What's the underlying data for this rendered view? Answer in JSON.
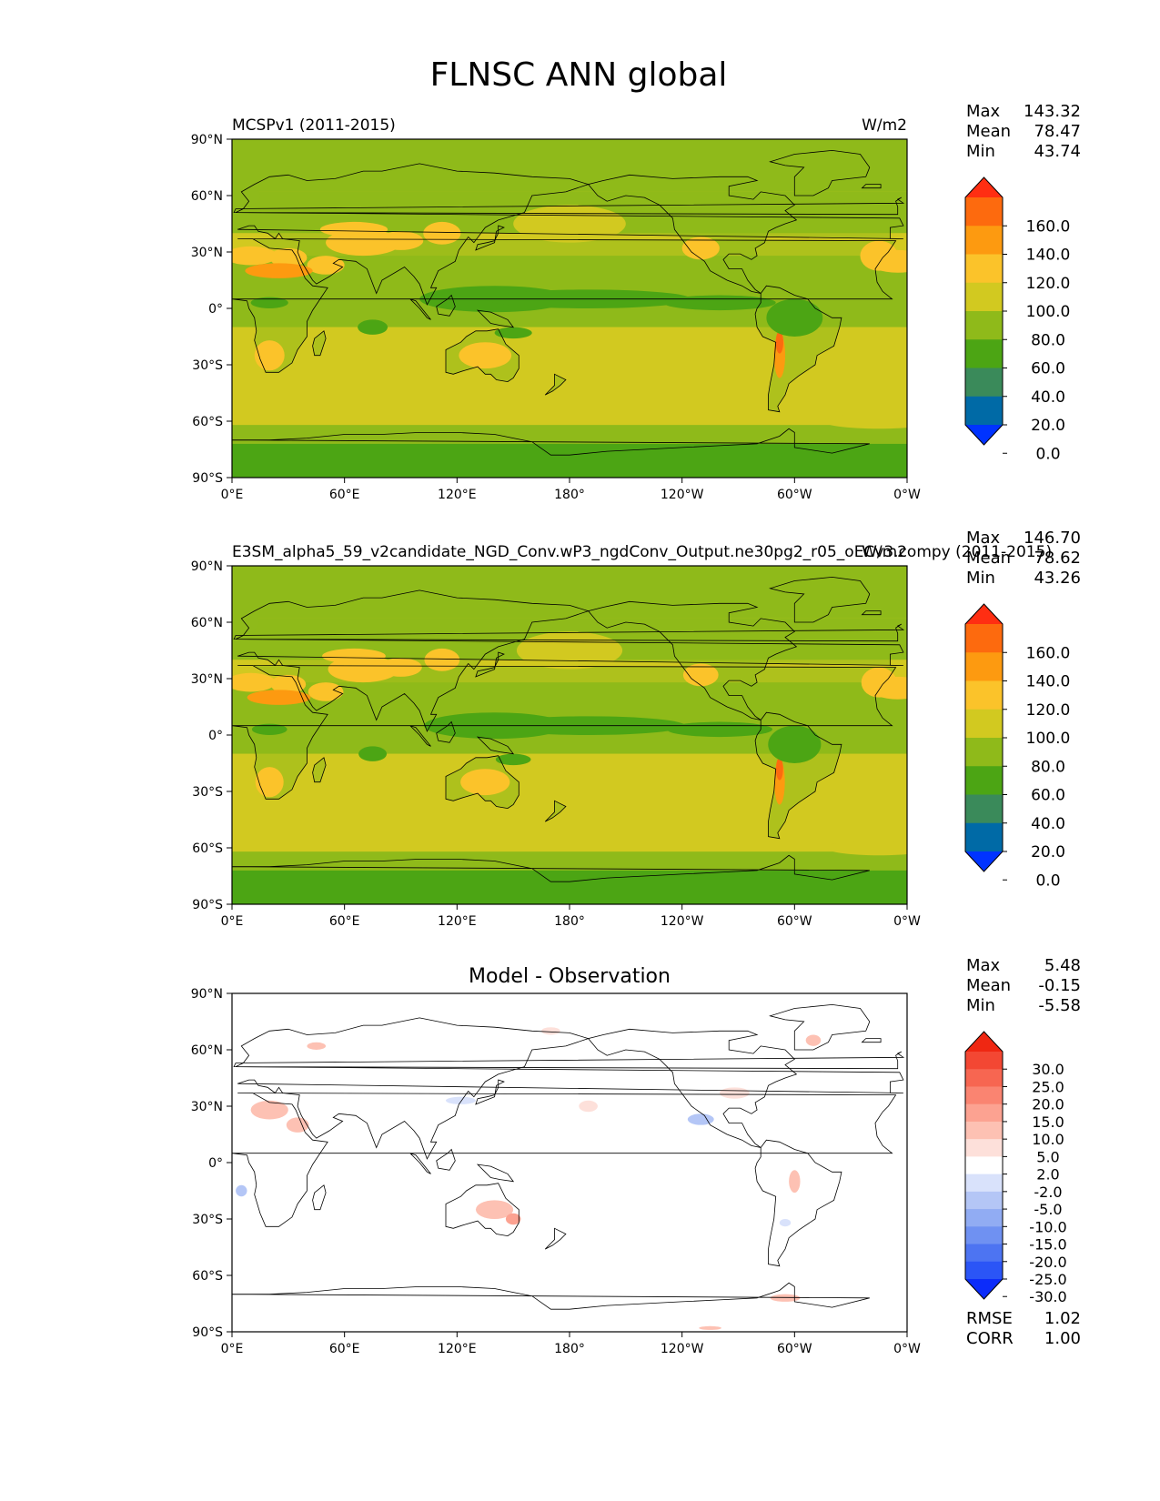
{
  "figure": {
    "title": "FLNSC ANN global"
  },
  "palettes": {
    "main": [
      "#0033ff",
      "#006aa6",
      "#3a8a5a",
      "#4ca514",
      "#8fba1a",
      "#d2c920",
      "#fbc32a",
      "#fd9a10",
      "#fd6a0e",
      "#ff2e12"
    ],
    "diff": [
      "#0c2cfa",
      "#2b55f6",
      "#4d74f2",
      "#6f91f2",
      "#91acf3",
      "#b4c6f6",
      "#d9e2fb",
      "#ffffff",
      "#fde0da",
      "#fdc1b3",
      "#fca291",
      "#fa8471",
      "#f76651",
      "#f34733",
      "#ef2712"
    ]
  },
  "lat_ticks": [
    "90°N",
    "60°N",
    "30°N",
    "0°",
    "30°S",
    "60°S",
    "90°S"
  ],
  "lon_ticks": [
    "0°E",
    "60°E",
    "120°E",
    "180°",
    "120°W",
    "60°W",
    "0°W"
  ],
  "chart_data": [
    {
      "type": "heatmap",
      "id": "test",
      "title_left": "MCSPv1 (2011-2015)",
      "title_right": "W/m2",
      "stats": [
        [
          "Max",
          "143.32"
        ],
        [
          "Mean",
          "78.47"
        ],
        [
          "Min",
          "43.74"
        ]
      ],
      "colorbar_levels": [
        "160.0",
        "140.0",
        "120.0",
        "100.0",
        "80.0",
        "60.0",
        "40.0",
        "20.0",
        "0.0"
      ],
      "xlim": [
        0,
        360
      ],
      "ylim": [
        -90,
        90
      ]
    },
    {
      "type": "heatmap",
      "id": "ref",
      "title_left": "E3SM_alpha5_59_v2candidate_NGD_Conv.wP3_ngdConv_Output.ne30pg2_r05_oECv3.compy (2011-2015)",
      "title_right": "W/m2",
      "stats": [
        [
          "Max",
          "146.70"
        ],
        [
          "Mean",
          "78.62"
        ],
        [
          "Min",
          "43.26"
        ]
      ],
      "colorbar_levels": [
        "160.0",
        "140.0",
        "120.0",
        "100.0",
        "80.0",
        "60.0",
        "40.0",
        "20.0",
        "0.0"
      ],
      "xlim": [
        0,
        360
      ],
      "ylim": [
        -90,
        90
      ]
    },
    {
      "type": "heatmap",
      "id": "diff",
      "title_center": "Model - Observation",
      "stats": [
        [
          "Max",
          "5.48"
        ],
        [
          "Mean",
          "-0.15"
        ],
        [
          "Min",
          "-5.58"
        ]
      ],
      "colorbar_levels": [
        "30.0",
        "25.0",
        "20.0",
        "15.0",
        "10.0",
        "5.0",
        "2.0",
        "-2.0",
        "-5.0",
        "-10.0",
        "-15.0",
        "-20.0",
        "-25.0",
        "-30.0"
      ],
      "footer_stats": [
        [
          "RMSE",
          "1.02"
        ],
        [
          "CORR",
          "1.00"
        ]
      ],
      "xlim": [
        0,
        360
      ],
      "ylim": [
        -90,
        90
      ]
    }
  ]
}
